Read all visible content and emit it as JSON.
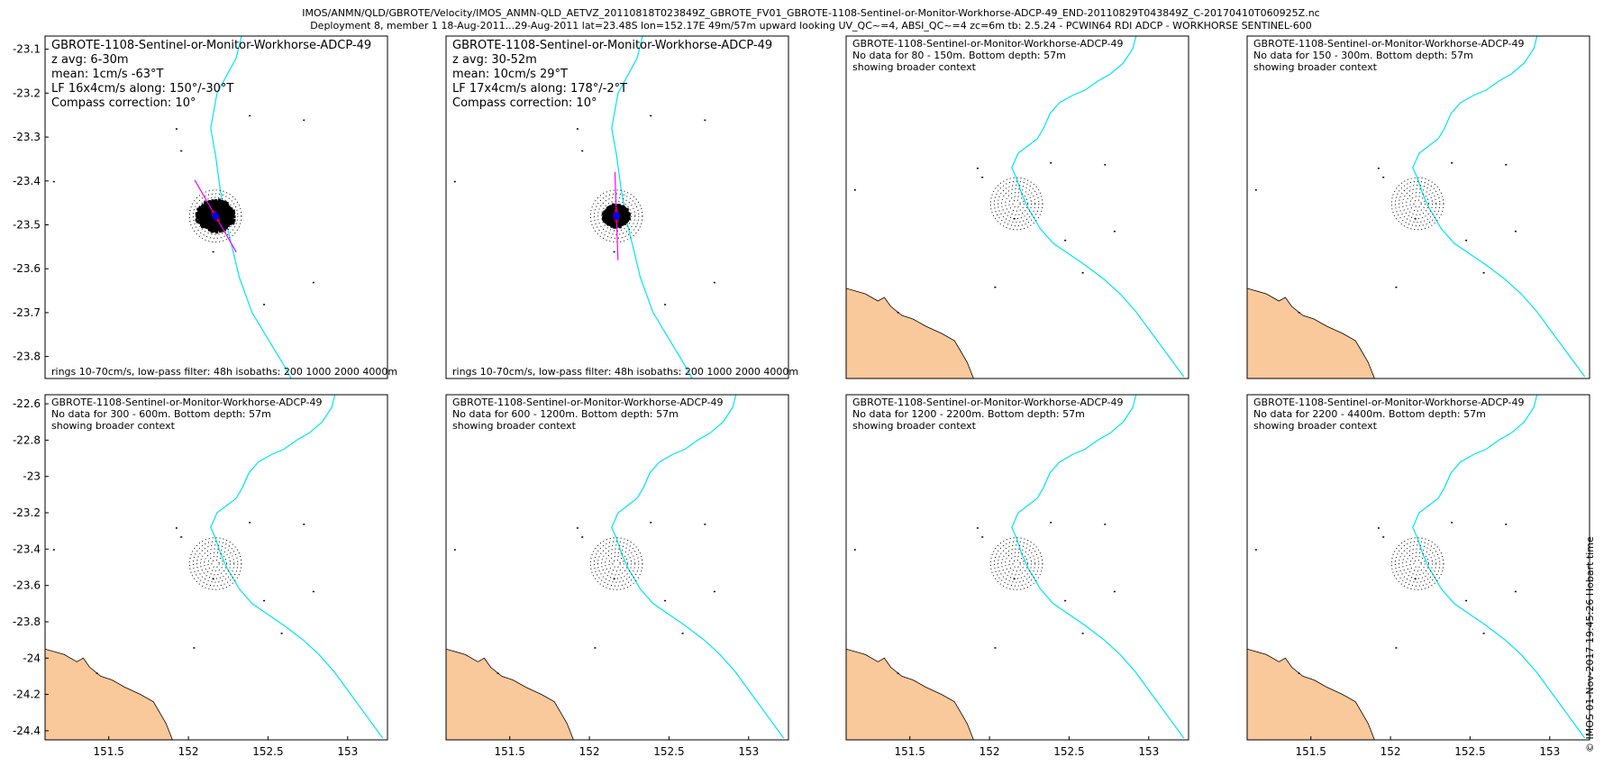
{
  "header": {
    "line1": "IMOS/ANMN/QLD/GBROTE/Velocity/IMOS_ANMN-QLD_AETVZ_20110818T023849Z_GBROTE_FV01_GBROTE-1108-Sentinel-or-Monitor-Workhorse-ADCP-49_END-20110829T043849Z_C-20170410T060925Z.nc",
    "line2": "Deployment 8, member 1 18-Aug-2011...29-Aug-2011 lat=23.48S lon=152.17E 49m/57m upward looking UV_QC~=4, ABSI_QC~=4 zc=6m tb: 2.5.24 - PCWIN64 RDI ADCP - WORKHORSE SENTINEL-600"
  },
  "credit": "© IMOS 01-Nov-2017 19:45:26 Hobart time",
  "colors": {
    "land": "#f9c89b",
    "coast": "#000000",
    "isobath": "#00e5ee",
    "rings": "#000000",
    "points": "#000000",
    "lf_axis": "#ff00ff",
    "mean_marker": "#0000ff",
    "trajectory": "#cc0000"
  },
  "chart_data": [
    {
      "type": "scatter",
      "title": "GBROTE-1108-Sentinel-or-Monitor-Workhorse-ADCP-49",
      "info_lines": [
        "z avg: 6-30m",
        "mean: 1cm/s -63°T",
        "LF 16x4cm/s along: 150°/-30°T",
        "Compass correction: 10°"
      ],
      "footer": "rings 10-70cm/s, low-pass filter: 48h isobaths: 200 1000 2000 4000m",
      "xlim": [
        151.1,
        153.25
      ],
      "ylim": [
        -23.85,
        -23.07
      ],
      "xticks": [],
      "yticks": [
        -23.1,
        -23.2,
        -23.3,
        -23.4,
        -23.5,
        -23.6,
        -23.7,
        -23.8
      ],
      "ytick_labels": [
        "-23.1",
        "-23.2",
        "-23.3",
        "-23.4",
        "-23.5",
        "-23.6",
        "-23.7",
        "-23.8"
      ],
      "center": [
        152.17,
        -23.48
      ],
      "rings_cm_s": [
        10,
        20,
        30,
        40,
        50,
        60,
        70
      ],
      "ring_step": 0.0233,
      "mean_speed_cm_s": 1,
      "mean_dir_deg": -63,
      "lf_major_cm_s": 16,
      "lf_minor_cm_s": 4,
      "lf_dir_deg": 150,
      "scatter_seed": 7,
      "scatter_count": 900,
      "scatter_radius_cm_s": 49
    },
    {
      "type": "scatter",
      "title": "GBROTE-1108-Sentinel-or-Monitor-Workhorse-ADCP-49",
      "info_lines": [
        "z avg: 30-52m",
        "mean: 10cm/s 29°T",
        "LF 17x4cm/s along: 178°/-2°T",
        "Compass correction: 10°"
      ],
      "footer": "rings 10-70cm/s, low-pass filter: 48h isobaths: 200 1000 2000 4000m",
      "xlim": [
        151.1,
        153.25
      ],
      "ylim": [
        -23.85,
        -23.07
      ],
      "xticks": [],
      "yticks": [],
      "center": [
        152.17,
        -23.48
      ],
      "rings_cm_s": [
        10,
        20,
        30,
        40,
        50,
        60,
        70
      ],
      "ring_step": 0.0233,
      "mean_speed_cm_s": 10,
      "mean_dir_deg": 29,
      "lf_major_cm_s": 17,
      "lf_minor_cm_s": 4,
      "lf_dir_deg": 178,
      "scatter_seed": 13,
      "scatter_count": 700,
      "scatter_radius_cm_s": 34
    },
    {
      "type": "map",
      "title": "GBROTE-1108-Sentinel-or-Monitor-Workhorse-ADCP-49",
      "info_lines": [
        "No data for 80 - 150m. Bottom depth: 57m",
        "showing broader context"
      ],
      "xlim": [
        151.1,
        153.25
      ],
      "ylim": [
        -24.45,
        -22.55
      ],
      "xticks": [],
      "yticks": [],
      "center": [
        152.17,
        -23.48
      ],
      "rings_cm_s": [
        10,
        20,
        30,
        40,
        50,
        60,
        70
      ],
      "ring_step": 0.0233
    },
    {
      "type": "map",
      "title": "GBROTE-1108-Sentinel-or-Monitor-Workhorse-ADCP-49",
      "info_lines": [
        "No data for 150 - 300m. Bottom depth: 57m",
        "showing broader context"
      ],
      "xlim": [
        151.1,
        153.25
      ],
      "ylim": [
        -24.45,
        -22.55
      ],
      "xticks": [],
      "yticks": [],
      "center": [
        152.17,
        -23.48
      ],
      "rings_cm_s": [
        10,
        20,
        30,
        40,
        50,
        60,
        70
      ],
      "ring_step": 0.0233
    },
    {
      "type": "map",
      "title": "GBROTE-1108-Sentinel-or-Monitor-Workhorse-ADCP-49",
      "info_lines": [
        "No data for 300 - 600m. Bottom depth: 57m",
        "showing broader context"
      ],
      "xlim": [
        151.1,
        153.25
      ],
      "ylim": [
        -24.45,
        -22.55
      ],
      "xticks": [
        151.5,
        152,
        152.5,
        153
      ],
      "xtick_labels": [
        "151.5",
        "152",
        "152.5",
        "153"
      ],
      "yticks": [
        -22.6,
        -22.8,
        -23.0,
        -23.2,
        -23.4,
        -23.6,
        -23.8,
        -24.0,
        -24.2,
        -24.4
      ],
      "ytick_labels": [
        "-22.6",
        "-22.8",
        "-23",
        "-23.2",
        "-23.4",
        "-23.6",
        "-23.8",
        "-24",
        "-24.2",
        "-24.4"
      ],
      "center": [
        152.17,
        -23.48
      ],
      "rings_cm_s": [
        10,
        20,
        30,
        40,
        50,
        60,
        70
      ],
      "ring_step": 0.0233
    },
    {
      "type": "map",
      "title": "GBROTE-1108-Sentinel-or-Monitor-Workhorse-ADCP-49",
      "info_lines": [
        "No data for 600 - 1200m. Bottom depth: 57m",
        "showing broader context"
      ],
      "xlim": [
        151.1,
        153.25
      ],
      "ylim": [
        -24.45,
        -22.55
      ],
      "xticks": [
        151.5,
        152,
        152.5,
        153
      ],
      "xtick_labels": [
        "151.5",
        "152",
        "152.5",
        "153"
      ],
      "yticks": [],
      "center": [
        152.17,
        -23.48
      ],
      "rings_cm_s": [
        10,
        20,
        30,
        40,
        50,
        60,
        70
      ],
      "ring_step": 0.0233
    },
    {
      "type": "map",
      "title": "GBROTE-1108-Sentinel-or-Monitor-Workhorse-ADCP-49",
      "info_lines": [
        "No data for 1200 - 2200m. Bottom depth: 57m",
        "showing broader context"
      ],
      "xlim": [
        151.1,
        153.25
      ],
      "ylim": [
        -24.45,
        -22.55
      ],
      "xticks": [
        151.5,
        152,
        152.5,
        153
      ],
      "xtick_labels": [
        "151.5",
        "152",
        "152.5",
        "153"
      ],
      "yticks": [],
      "center": [
        152.17,
        -23.48
      ],
      "rings_cm_s": [
        10,
        20,
        30,
        40,
        50,
        60,
        70
      ],
      "ring_step": 0.0233
    },
    {
      "type": "map",
      "title": "GBROTE-1108-Sentinel-or-Monitor-Workhorse-ADCP-49",
      "info_lines": [
        "No data for 2200 - 4400m. Bottom depth: 57m",
        "showing broader context"
      ],
      "xlim": [
        151.1,
        153.25
      ],
      "ylim": [
        -24.45,
        -22.55
      ],
      "xticks": [
        151.5,
        152,
        152.5,
        153
      ],
      "xtick_labels": [
        "151.5",
        "152",
        "152.5",
        "153"
      ],
      "yticks": [],
      "center": [
        152.17,
        -23.48
      ],
      "rings_cm_s": [
        10,
        20,
        30,
        40,
        50,
        60,
        70
      ],
      "ring_step": 0.0233
    }
  ],
  "geo": {
    "coastline": [
      [
        151.1,
        -23.95
      ],
      [
        151.22,
        -23.98
      ],
      [
        151.3,
        -24.02
      ],
      [
        151.34,
        -24.0
      ],
      [
        151.38,
        -24.05
      ],
      [
        151.45,
        -24.1
      ],
      [
        151.52,
        -24.12
      ],
      [
        151.6,
        -24.16
      ],
      [
        151.7,
        -24.2
      ],
      [
        151.78,
        -24.24
      ],
      [
        151.82,
        -24.3
      ],
      [
        151.86,
        -24.36
      ],
      [
        151.9,
        -24.45
      ]
    ],
    "isobath": [
      [
        152.92,
        -22.55
      ],
      [
        152.9,
        -22.62
      ],
      [
        152.84,
        -22.7
      ],
      [
        152.76,
        -22.76
      ],
      [
        152.68,
        -22.8
      ],
      [
        152.6,
        -22.85
      ],
      [
        152.52,
        -22.88
      ],
      [
        152.44,
        -22.92
      ],
      [
        152.38,
        -22.98
      ],
      [
        152.34,
        -23.06
      ],
      [
        152.3,
        -23.12
      ],
      [
        152.24,
        -23.16
      ],
      [
        152.18,
        -23.2
      ],
      [
        152.14,
        -23.28
      ],
      [
        152.17,
        -23.34
      ],
      [
        152.2,
        -23.42
      ],
      [
        152.24,
        -23.5
      ],
      [
        152.28,
        -23.56
      ],
      [
        152.32,
        -23.62
      ],
      [
        152.4,
        -23.7
      ],
      [
        152.5,
        -23.76
      ],
      [
        152.6,
        -23.82
      ],
      [
        152.72,
        -23.9
      ],
      [
        152.82,
        -23.98
      ],
      [
        152.92,
        -24.08
      ],
      [
        153.02,
        -24.2
      ],
      [
        153.12,
        -24.32
      ],
      [
        153.22,
        -24.44
      ]
    ],
    "islands": [
      [
        151.15,
        -23.4
      ],
      [
        151.92,
        -23.28
      ],
      [
        151.95,
        -23.33
      ],
      [
        152.15,
        -23.56
      ],
      [
        152.38,
        -23.25
      ],
      [
        152.47,
        -23.68
      ],
      [
        152.58,
        -23.86
      ],
      [
        152.03,
        -23.94
      ],
      [
        151.42,
        -24.08
      ],
      [
        152.78,
        -23.63
      ],
      [
        152.72,
        -23.26
      ]
    ]
  }
}
